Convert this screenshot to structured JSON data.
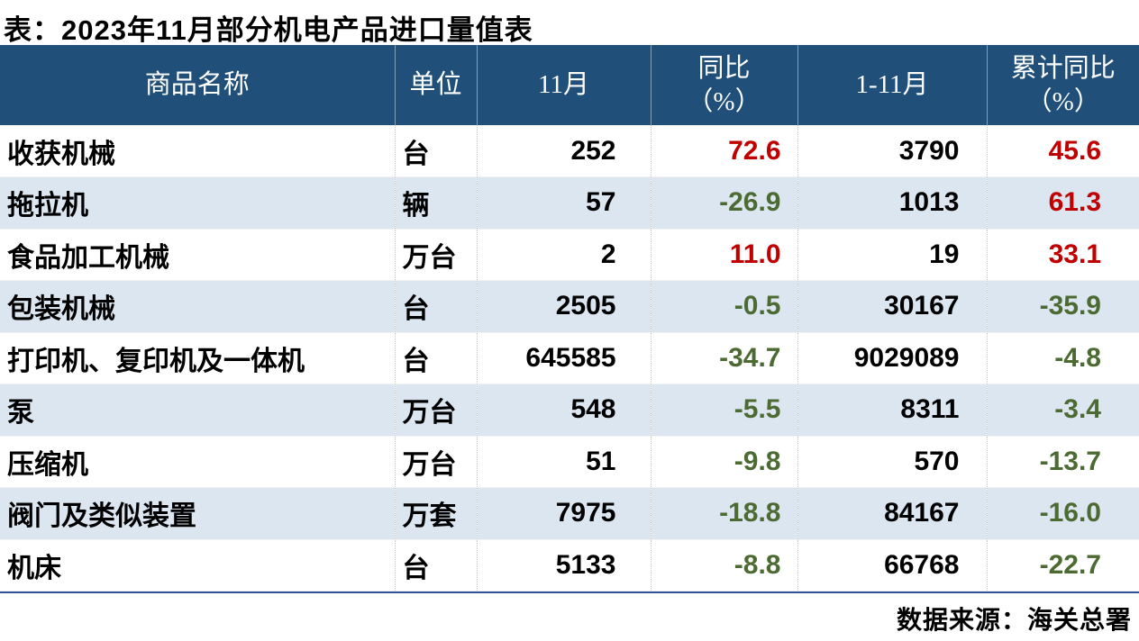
{
  "title": "表：2023年11月部分机电产品进口量值表",
  "source_note": "数据来源：海关总署",
  "colors": {
    "header_bg": "#20507A",
    "header_text": "#FFFFFF",
    "row_alt_bg": "#DCE6F1",
    "positive_value": "#C00000",
    "negative_value": "#4C6B33",
    "bottom_rule": "#2F5496",
    "body_text": "#000000"
  },
  "chart_data": {
    "type": "table",
    "title": "表：2023年11月部分机电产品进口量值表",
    "source": "数据来源：海关总署",
    "columns": [
      "商品名称",
      "单位",
      "11月",
      "同比（%）",
      "1-11月",
      "累计同比（%）"
    ],
    "header": {
      "name": "商品名称",
      "unit": "单位",
      "nov": "11月",
      "yoy_line1": "同比",
      "yoy_line2": "（%）",
      "jan_nov": "1-11月",
      "cum_line1": "累计同比",
      "cum_line2": "（%）"
    },
    "value_color_legend": {
      "positive": "red (#C00000)",
      "negative": "dark green (#4C6B33)"
    },
    "rows": [
      {
        "name": "收获机械",
        "unit": "台",
        "nov": "252",
        "yoy": "72.6",
        "yoy_trend": "positive",
        "jan_nov": "3790",
        "cum_yoy": "45.6",
        "cum_yoy_trend": "positive"
      },
      {
        "name": "拖拉机",
        "unit": "辆",
        "nov": "57",
        "yoy": "-26.9",
        "yoy_trend": "negative",
        "jan_nov": "1013",
        "cum_yoy": "61.3",
        "cum_yoy_trend": "positive"
      },
      {
        "name": "食品加工机械",
        "unit": "万台",
        "nov": "2",
        "yoy": "11.0",
        "yoy_trend": "positive",
        "jan_nov": "19",
        "cum_yoy": "33.1",
        "cum_yoy_trend": "positive"
      },
      {
        "name": "包装机械",
        "unit": "台",
        "nov": "2505",
        "yoy": "-0.5",
        "yoy_trend": "negative",
        "jan_nov": "30167",
        "cum_yoy": "-35.9",
        "cum_yoy_trend": "negative"
      },
      {
        "name": "打印机、复印机及一体机",
        "unit": "台",
        "nov": "645585",
        "yoy": "-34.7",
        "yoy_trend": "negative",
        "jan_nov": "9029089",
        "cum_yoy": "-4.8",
        "cum_yoy_trend": "negative"
      },
      {
        "name": "泵",
        "unit": "万台",
        "nov": "548",
        "yoy": "-5.5",
        "yoy_trend": "negative",
        "jan_nov": "8311",
        "cum_yoy": "-3.4",
        "cum_yoy_trend": "negative"
      },
      {
        "name": "压缩机",
        "unit": "万台",
        "nov": "51",
        "yoy": "-9.8",
        "yoy_trend": "negative",
        "jan_nov": "570",
        "cum_yoy": "-13.7",
        "cum_yoy_trend": "negative"
      },
      {
        "name": "阀门及类似装置",
        "unit": "万套",
        "nov": "7975",
        "yoy": "-18.8",
        "yoy_trend": "negative",
        "jan_nov": "84167",
        "cum_yoy": "-16.0",
        "cum_yoy_trend": "negative"
      },
      {
        "name": "机床",
        "unit": "台",
        "nov": "5133",
        "yoy": "-8.8",
        "yoy_trend": "negative",
        "jan_nov": "66768",
        "cum_yoy": "-22.7",
        "cum_yoy_trend": "negative"
      }
    ]
  }
}
